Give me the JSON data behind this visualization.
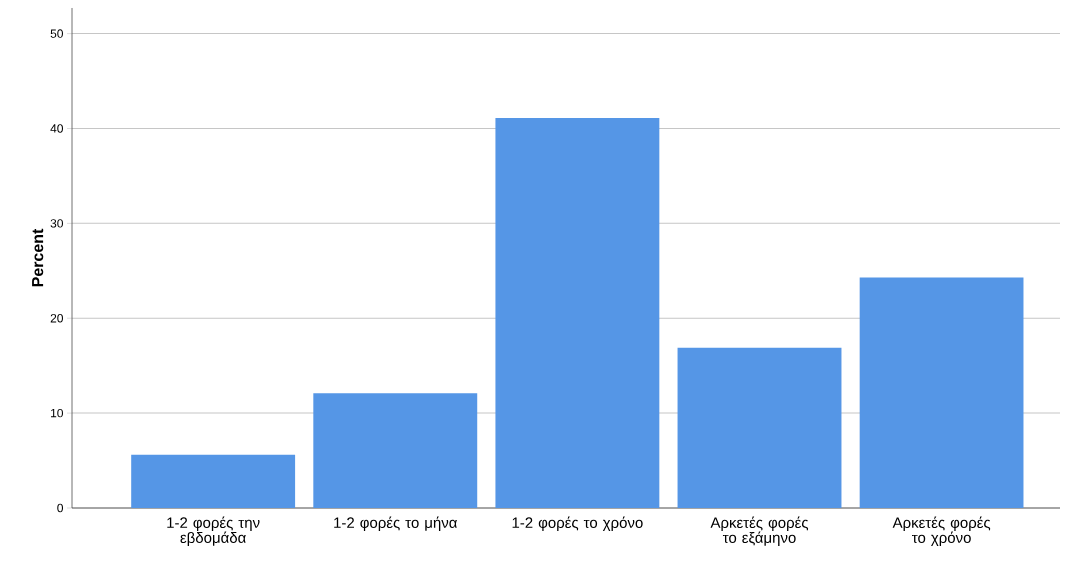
{
  "chart_data": {
    "type": "bar",
    "ylabel": "Percent",
    "categories": [
      "1-2 φορές την εβδομάδα",
      "1-2 φορές το μήνα",
      "1-2 φορές το χρόνο",
      "Αρκετές φορές το εξάμηνο",
      "Αρκετές φορές το χρόνο"
    ],
    "values": [
      5.6,
      12.1,
      41.1,
      16.9,
      24.3
    ],
    "color": "#5596e6",
    "ylim": [
      0,
      52.7
    ],
    "yticks": [
      0,
      10,
      20,
      30,
      40,
      50
    ],
    "grid": "y"
  }
}
